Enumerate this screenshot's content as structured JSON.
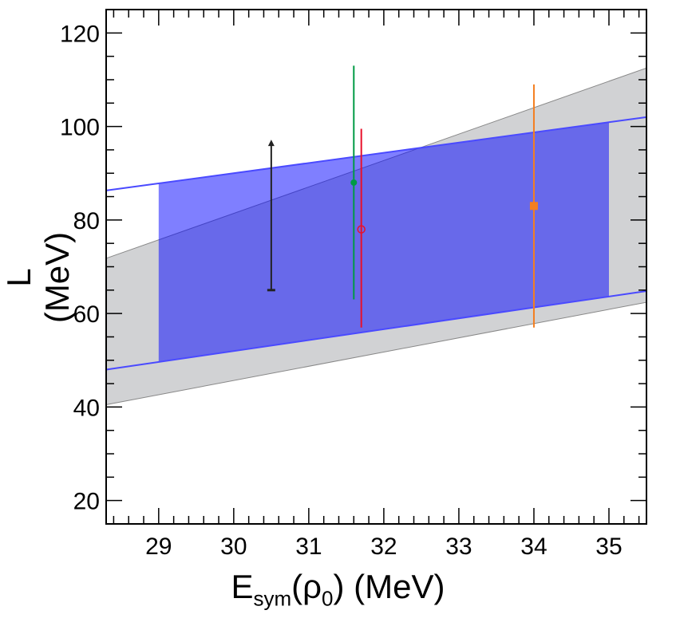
{
  "chart_data": {
    "type": "scatter",
    "xlabel": {
      "main": "E",
      "sub": "sym",
      "paren_open": "(ρ",
      "sub2": "0",
      "rest": ") (MeV)"
    },
    "ylabel": "L (MeV)",
    "xlim": [
      28.3,
      35.5
    ],
    "ylim": [
      15,
      125
    ],
    "xticks": [
      29,
      30,
      31,
      32,
      33,
      34,
      35
    ],
    "yticks": [
      20,
      40,
      60,
      80,
      100,
      120
    ],
    "bands": [
      {
        "name": "gray-band",
        "color": "#d1d2d4",
        "lower": [
          [
            28.3,
            40.5
          ],
          [
            35.5,
            62.4
          ]
        ],
        "upper": [
          [
            28.3,
            71.8
          ],
          [
            35.5,
            112.5
          ]
        ]
      },
      {
        "name": "blue-band",
        "color": "#0000ff",
        "line_color": "#4a4aff",
        "fill_x": [
          29,
          35
        ],
        "lower": [
          [
            28.3,
            48.0
          ],
          [
            35.5,
            64.8
          ]
        ],
        "upper": [
          [
            28.3,
            86.3
          ],
          [
            35.5,
            102.0
          ]
        ]
      }
    ],
    "points": [
      {
        "name": "black-lower-limit",
        "x": 30.5,
        "y": null,
        "ymin": 65,
        "ymax": 97,
        "marker": "arrow-up",
        "color": "#222222"
      },
      {
        "name": "green-point",
        "x": 31.6,
        "y": 88,
        "ymin": 63,
        "ymax": 113,
        "marker": "filled-circle",
        "color": "#009a44"
      },
      {
        "name": "red-point",
        "x": 31.7,
        "y": 78,
        "ymin": 57,
        "ymax": 99.5,
        "marker": "open-circle",
        "color": "#e8102a"
      },
      {
        "name": "orange-point",
        "x": 34,
        "y": 83,
        "ymin": 57,
        "ymax": 109,
        "marker": "filled-square",
        "color": "#f47f20"
      }
    ]
  }
}
